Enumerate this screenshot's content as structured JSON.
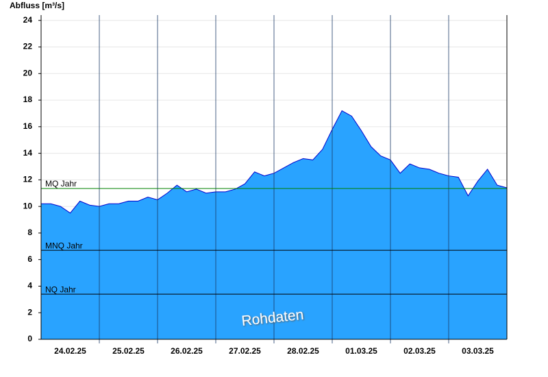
{
  "chart_data": {
    "type": "area",
    "y_label": "Abfluss [m³/s]",
    "annotation": "Rohdaten",
    "x": [
      0,
      4,
      8,
      12,
      16,
      20,
      24,
      28,
      32,
      36,
      40,
      44,
      48,
      52,
      56,
      60,
      64,
      68,
      72,
      76,
      80,
      84,
      88,
      92,
      96,
      100,
      104,
      108,
      112,
      116,
      120,
      124,
      128,
      132,
      136,
      140,
      144,
      148,
      152,
      156,
      160,
      164,
      168,
      172,
      176,
      180,
      184,
      188,
      192
    ],
    "values": [
      10.2,
      10.2,
      10.0,
      9.5,
      10.4,
      10.1,
      10.0,
      10.2,
      10.2,
      10.4,
      10.4,
      10.7,
      10.5,
      11.0,
      11.6,
      11.1,
      11.3,
      11.0,
      11.1,
      11.1,
      11.3,
      11.7,
      12.6,
      12.3,
      12.5,
      12.9,
      13.3,
      13.6,
      13.5,
      14.3,
      15.8,
      17.2,
      16.8,
      15.7,
      14.5,
      13.8,
      13.5,
      12.5,
      13.2,
      12.9,
      12.8,
      12.5,
      12.3,
      12.2,
      10.8,
      11.9,
      12.8,
      11.6,
      11.4
    ],
    "color": "#29a3ff",
    "line_color": "#0000cc",
    "xlim": [
      0,
      192
    ],
    "xticks": [
      {
        "value": 12,
        "label": "24.02.25"
      },
      {
        "value": 36,
        "label": "25.02.25"
      },
      {
        "value": 60,
        "label": "26.02.25"
      },
      {
        "value": 84,
        "label": "27.02.25"
      },
      {
        "value": 108,
        "label": "28.02.25"
      },
      {
        "value": 132,
        "label": "01.03.25"
      },
      {
        "value": 156,
        "label": "02.03.25"
      },
      {
        "value": 180,
        "label": "03.03.25"
      }
    ],
    "x_grid": [
      24,
      48,
      72,
      96,
      120,
      144,
      168
    ],
    "ylim": [
      0,
      24.4
    ],
    "yticks": [
      0,
      2,
      4,
      6,
      8,
      10,
      12,
      14,
      16,
      18,
      20,
      22,
      24
    ],
    "grid": true,
    "reference_lines": [
      {
        "label": "MQ Jahr",
        "value": 11.35,
        "color": "#008000"
      },
      {
        "label": "MNQ Jahr",
        "value": 6.7,
        "color": "#000000"
      },
      {
        "label": "NQ Jahr",
        "value": 3.4,
        "color": "#000000"
      }
    ]
  }
}
